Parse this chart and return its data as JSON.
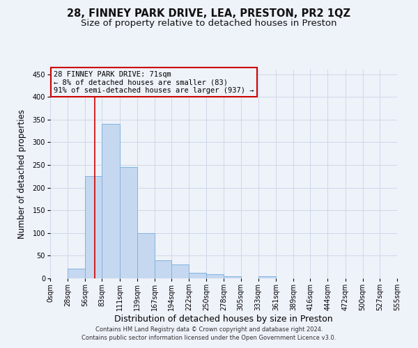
{
  "title": "28, FINNEY PARK DRIVE, LEA, PRESTON, PR2 1QZ",
  "subtitle": "Size of property relative to detached houses in Preston",
  "xlabel": "Distribution of detached houses by size in Preston",
  "ylabel": "Number of detached properties",
  "footnote1": "Contains HM Land Registry data © Crown copyright and database right 2024.",
  "footnote2": "Contains public sector information licensed under the Open Government Licence v3.0.",
  "bin_edges": [
    0,
    28,
    56,
    83,
    111,
    139,
    167,
    194,
    222,
    250,
    278,
    305,
    333,
    361,
    389,
    416,
    444,
    472,
    500,
    527,
    555
  ],
  "bar_heights": [
    0,
    22,
    225,
    340,
    245,
    100,
    40,
    30,
    12,
    9,
    5,
    0,
    4,
    0,
    0,
    0,
    0,
    0,
    0,
    0
  ],
  "bar_color": "#c5d8f0",
  "bar_edge_color": "#7fb3e0",
  "grid_color": "#d0d8e8",
  "property_size": 71,
  "red_line_color": "#cc0000",
  "annotation_box_text": "28 FINNEY PARK DRIVE: 71sqm\n← 8% of detached houses are smaller (83)\n91% of semi-detached houses are larger (937) →",
  "ylim": [
    0,
    460
  ],
  "yticks": [
    0,
    50,
    100,
    150,
    200,
    250,
    300,
    350,
    400,
    450
  ],
  "background_color": "#eef2f9",
  "title_fontsize": 10.5,
  "subtitle_fontsize": 9.5,
  "tick_fontsize": 7,
  "xlabel_fontsize": 9,
  "ylabel_fontsize": 8.5,
  "annotation_fontsize": 7.5
}
